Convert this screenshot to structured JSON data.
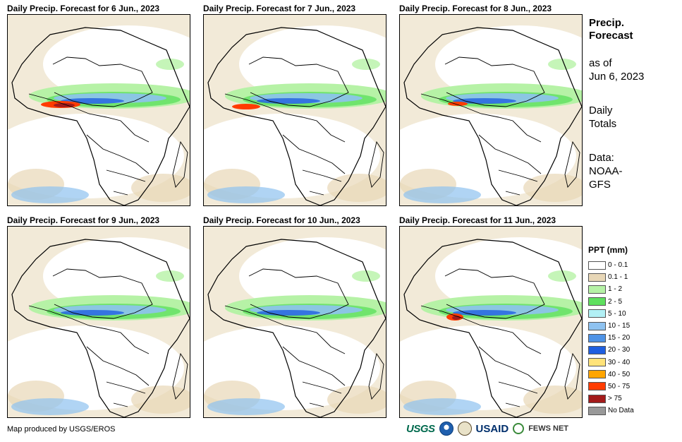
{
  "panels": [
    {
      "title": "Daily Precip. Forecast for 6 Jun., 2023"
    },
    {
      "title": "Daily Precip. Forecast for 7 Jun., 2023"
    },
    {
      "title": "Daily Precip. Forecast for 8 Jun., 2023"
    },
    {
      "title": "Daily Precip. Forecast for 9 Jun., 2023"
    },
    {
      "title": "Daily Precip. Forecast for 10 Jun., 2023"
    },
    {
      "title": "Daily Precip. Forecast for 11 Jun., 2023"
    }
  ],
  "side_info": {
    "title_line1": "Precip.",
    "title_line2": "Forecast",
    "asof_line1": "as of",
    "asof_line2": "Jun 6, 2023",
    "daily_line1": "Daily",
    "daily_line2": "Totals",
    "source_line1": "Data:",
    "source_line2": "NOAA-",
    "source_line3": "GFS"
  },
  "legend": {
    "title": "PPT (mm)",
    "items": [
      {
        "label": "0 - 0.1",
        "color": "#ffffff"
      },
      {
        "label": "0.1 - 1",
        "color": "#e8d7b7"
      },
      {
        "label": "1 - 2",
        "color": "#b6f2a6"
      },
      {
        "label": "2 - 5",
        "color": "#5fe05f"
      },
      {
        "label": "5 - 10",
        "color": "#b2f0f5"
      },
      {
        "label": "10 - 15",
        "color": "#8ec2f0"
      },
      {
        "label": "15 - 20",
        "color": "#4f93e6"
      },
      {
        "label": "20 - 30",
        "color": "#1f5fe0"
      },
      {
        "label": "30 - 40",
        "color": "#ffe37a"
      },
      {
        "label": "40 - 50",
        "color": "#ffa500"
      },
      {
        "label": "50 - 75",
        "color": "#ff3c00"
      },
      {
        "label": "> 75",
        "color": "#a31a1a"
      },
      {
        "label": "No Data",
        "color": "#999999"
      }
    ]
  },
  "footer": {
    "credit": "Map produced by USGS/EROS",
    "logos": {
      "usgs": "USGS",
      "usaid": "USAID",
      "fews": "FEWS NET"
    }
  }
}
